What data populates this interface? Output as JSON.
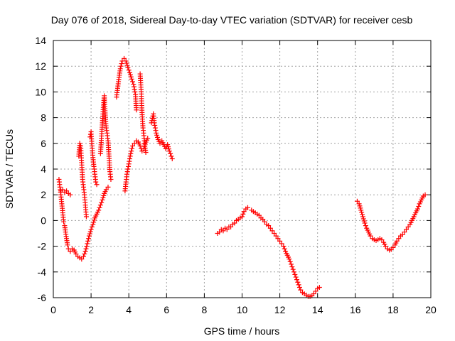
{
  "chart_data": {
    "type": "scatter",
    "title": "Day 076 of 2018, Sidereal Day-to-day VTEC variation (SDTVAR) for receiver cesb",
    "xlabel": "GPS time / hours",
    "ylabel": "SDTVAR / TECUs",
    "xlim": [
      0,
      20
    ],
    "ylim": [
      -6,
      14
    ],
    "xticks": [
      0,
      2,
      4,
      6,
      8,
      10,
      12,
      14,
      16,
      18,
      20
    ],
    "yticks": [
      -6,
      -4,
      -2,
      0,
      2,
      4,
      6,
      8,
      10,
      12,
      14
    ],
    "grid": true,
    "marker": "+",
    "series_color": "#ff0000",
    "series": [
      {
        "name": "SDTVAR",
        "segments": [
          [
            [
              0.3,
              3.2
            ],
            [
              0.35,
              2.6
            ],
            [
              0.4,
              2.0
            ],
            [
              0.45,
              1.3
            ],
            [
              0.5,
              0.6
            ],
            [
              0.55,
              -0.1
            ],
            [
              0.6,
              -0.4
            ],
            [
              0.65,
              -0.9
            ],
            [
              0.7,
              -1.4
            ],
            [
              0.75,
              -1.9
            ],
            [
              0.8,
              -2.2
            ],
            [
              0.9,
              -2.4
            ],
            [
              1.0,
              -2.2
            ],
            [
              1.1,
              -2.3
            ],
            [
              1.2,
              -2.6
            ],
            [
              1.3,
              -2.8
            ],
            [
              1.4,
              -2.9
            ],
            [
              1.5,
              -3.0
            ],
            [
              1.6,
              -2.8
            ],
            [
              1.7,
              -2.4
            ],
            [
              1.8,
              -1.8
            ],
            [
              1.9,
              -1.2
            ],
            [
              2.0,
              -0.7
            ],
            [
              2.1,
              -0.3
            ],
            [
              2.2,
              0.2
            ],
            [
              2.3,
              0.5
            ],
            [
              2.4,
              0.8
            ],
            [
              2.5,
              1.2
            ],
            [
              2.6,
              1.6
            ],
            [
              2.7,
              2.1
            ],
            [
              2.8,
              2.4
            ],
            [
              2.9,
              2.6
            ]
          ],
          [
            [
              0.4,
              2.3
            ],
            [
              0.5,
              2.4
            ],
            [
              0.6,
              2.2
            ],
            [
              0.7,
              2.3
            ],
            [
              0.8,
              2.1
            ],
            [
              0.9,
              2.0
            ]
          ],
          [
            [
              1.35,
              5.0
            ],
            [
              1.4,
              6.0
            ],
            [
              1.45,
              5.8
            ],
            [
              1.5,
              4.5
            ],
            [
              1.55,
              3.2
            ],
            [
              1.6,
              2.6
            ],
            [
              1.65,
              2.0
            ],
            [
              1.7,
              1.2
            ],
            [
              1.75,
              0.3
            ]
          ],
          [
            [
              1.95,
              6.5
            ],
            [
              2.0,
              6.9
            ],
            [
              2.05,
              5.8
            ],
            [
              2.1,
              4.9
            ],
            [
              2.15,
              4.2
            ],
            [
              2.2,
              3.6
            ],
            [
              2.25,
              3.0
            ],
            [
              2.3,
              2.8
            ]
          ],
          [
            [
              2.5,
              5.2
            ],
            [
              2.55,
              6.4
            ],
            [
              2.6,
              7.6
            ],
            [
              2.65,
              8.8
            ],
            [
              2.7,
              9.7
            ],
            [
              2.75,
              8.2
            ],
            [
              2.8,
              7.2
            ],
            [
              2.85,
              6.8
            ],
            [
              2.9,
              6.2
            ],
            [
              2.95,
              5.0
            ],
            [
              3.0,
              3.8
            ],
            [
              3.05,
              3.2
            ]
          ],
          [
            [
              3.35,
              9.6
            ],
            [
              3.45,
              10.8
            ],
            [
              3.55,
              11.8
            ],
            [
              3.65,
              12.4
            ],
            [
              3.75,
              12.6
            ],
            [
              3.85,
              12.4
            ],
            [
              3.95,
              11.9
            ],
            [
              4.05,
              11.5
            ],
            [
              4.15,
              11.0
            ],
            [
              4.25,
              10.6
            ],
            [
              4.35,
              9.8
            ],
            [
              4.4,
              8.6
            ]
          ],
          [
            [
              3.8,
              2.3
            ],
            [
              3.85,
              3.0
            ],
            [
              3.9,
              3.6
            ],
            [
              4.0,
              4.4
            ],
            [
              4.1,
              5.2
            ],
            [
              4.2,
              5.8
            ],
            [
              4.3,
              6.0
            ],
            [
              4.4,
              6.2
            ],
            [
              4.5,
              6.1
            ],
            [
              4.6,
              5.8
            ],
            [
              4.7,
              5.4
            ],
            [
              4.8,
              5.6
            ],
            [
              4.9,
              6.1
            ],
            [
              5.0,
              6.4
            ]
          ],
          [
            [
              4.6,
              11.4
            ],
            [
              4.65,
              10.2
            ],
            [
              4.7,
              8.4
            ],
            [
              4.75,
              7.2
            ],
            [
              4.8,
              6.6
            ],
            [
              4.85,
              5.8
            ],
            [
              4.9,
              5.3
            ]
          ],
          [
            [
              5.2,
              7.6
            ],
            [
              5.3,
              8.3
            ],
            [
              5.35,
              7.6
            ],
            [
              5.45,
              6.8
            ],
            [
              5.55,
              6.3
            ],
            [
              5.65,
              6.0
            ],
            [
              5.75,
              6.2
            ],
            [
              5.85,
              5.9
            ],
            [
              5.95,
              5.6
            ],
            [
              6.05,
              5.9
            ],
            [
              6.15,
              5.4
            ],
            [
              6.25,
              5.0
            ],
            [
              6.3,
              4.8
            ]
          ],
          [
            [
              8.7,
              -1.0
            ],
            [
              8.8,
              -0.9
            ],
            [
              8.9,
              -0.7
            ],
            [
              9.0,
              -0.8
            ],
            [
              9.1,
              -0.6
            ],
            [
              9.2,
              -0.7
            ],
            [
              9.3,
              -0.5
            ],
            [
              9.4,
              -0.5
            ],
            [
              9.5,
              -0.3
            ],
            [
              9.6,
              -0.2
            ],
            [
              9.7,
              0.0
            ],
            [
              9.8,
              0.1
            ],
            [
              9.9,
              0.2
            ],
            [
              10.0,
              0.3
            ],
            [
              10.1,
              0.7
            ],
            [
              10.2,
              0.9
            ],
            [
              10.3,
              1.0
            ]
          ],
          [
            [
              10.5,
              0.8
            ],
            [
              10.6,
              0.7
            ],
            [
              10.7,
              0.6
            ],
            [
              10.8,
              0.5
            ],
            [
              10.9,
              0.4
            ],
            [
              11.0,
              0.2
            ],
            [
              11.1,
              0.1
            ],
            [
              11.2,
              -0.1
            ],
            [
              11.3,
              -0.3
            ],
            [
              11.4,
              -0.4
            ],
            [
              11.5,
              -0.6
            ],
            [
              11.6,
              -0.8
            ],
            [
              11.7,
              -1.0
            ],
            [
              11.8,
              -1.2
            ],
            [
              11.9,
              -1.4
            ],
            [
              12.0,
              -1.6
            ],
            [
              12.1,
              -1.8
            ],
            [
              12.2,
              -2.0
            ],
            [
              12.3,
              -2.4
            ],
            [
              12.4,
              -2.7
            ],
            [
              12.5,
              -3.0
            ],
            [
              12.6,
              -3.4
            ],
            [
              12.7,
              -3.8
            ],
            [
              12.8,
              -4.2
            ],
            [
              12.9,
              -4.6
            ],
            [
              13.0,
              -5.0
            ],
            [
              13.1,
              -5.4
            ],
            [
              13.2,
              -5.6
            ],
            [
              13.3,
              -5.7
            ],
            [
              13.4,
              -5.8
            ],
            [
              13.5,
              -5.9
            ],
            [
              13.6,
              -5.9
            ],
            [
              13.7,
              -5.85
            ],
            [
              13.8,
              -5.7
            ],
            [
              13.9,
              -5.5
            ],
            [
              14.0,
              -5.3
            ],
            [
              14.1,
              -5.2
            ]
          ],
          [
            [
              16.1,
              1.5
            ],
            [
              16.2,
              1.3
            ],
            [
              16.3,
              0.8
            ],
            [
              16.4,
              0.3
            ],
            [
              16.5,
              -0.2
            ],
            [
              16.6,
              -0.6
            ],
            [
              16.7,
              -0.9
            ],
            [
              16.8,
              -1.2
            ],
            [
              16.9,
              -1.4
            ],
            [
              17.0,
              -1.5
            ],
            [
              17.1,
              -1.55
            ],
            [
              17.2,
              -1.5
            ],
            [
              17.3,
              -1.4
            ],
            [
              17.4,
              -1.5
            ],
            [
              17.5,
              -1.7
            ],
            [
              17.6,
              -2.0
            ],
            [
              17.7,
              -2.2
            ],
            [
              17.8,
              -2.3
            ],
            [
              17.9,
              -2.25
            ],
            [
              18.0,
              -2.1
            ],
            [
              18.1,
              -1.9
            ],
            [
              18.2,
              -1.6
            ],
            [
              18.3,
              -1.4
            ],
            [
              18.4,
              -1.2
            ],
            [
              18.5,
              -1.1
            ],
            [
              18.6,
              -0.9
            ],
            [
              18.7,
              -0.7
            ],
            [
              18.8,
              -0.5
            ],
            [
              18.9,
              -0.3
            ],
            [
              19.0,
              0.0
            ],
            [
              19.1,
              0.3
            ],
            [
              19.2,
              0.6
            ],
            [
              19.3,
              0.9
            ],
            [
              19.4,
              1.3
            ],
            [
              19.5,
              1.6
            ],
            [
              19.6,
              1.9
            ],
            [
              19.7,
              2.0
            ]
          ]
        ]
      }
    ]
  }
}
